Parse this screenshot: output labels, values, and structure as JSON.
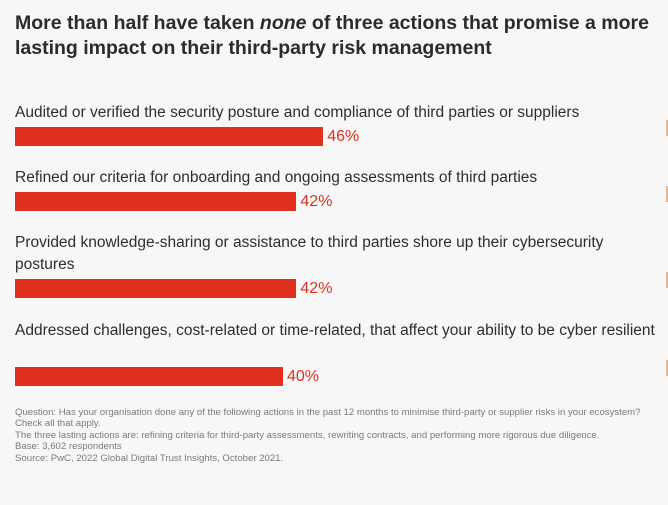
{
  "title": {
    "before": "More than half have taken ",
    "emphasis": "none",
    "after": " of three actions that promise a more lasting impact on their third-party risk management"
  },
  "chart_data": {
    "type": "bar",
    "orientation": "horizontal",
    "categories": [
      "Audited or verified the security posture and compliance of third parties or suppliers",
      "Refined our criteria for onboarding and ongoing assessments of third parties",
      "Provided knowledge-sharing or assistance to third parties shore up their cybersecurity postures",
      "Addressed challenges, cost-related or time-related, that affect your ability to be cyber resilient"
    ],
    "values": [
      46,
      42,
      42,
      40
    ],
    "value_labels": [
      "46%",
      "42%",
      "42%",
      "40%"
    ],
    "unit": "%",
    "xlim": [
      0,
      100
    ],
    "bar_color": "#e0301e",
    "grid": false
  },
  "notes": {
    "question": "Question: Has your organisation done any of the following actions in the past 12 months to minimise third-party or supplier risks in your ecosystem? Check all that apply.",
    "lasting_actions": "The three lasting actions are: refining criteria for third-party assessments, rewriting contracts, and performing more rigorous due diligence.",
    "base": "Base: 3,602 respondents",
    "source": "Source: PwC, 2022 Global Digital Trust Insights, October 2021."
  }
}
